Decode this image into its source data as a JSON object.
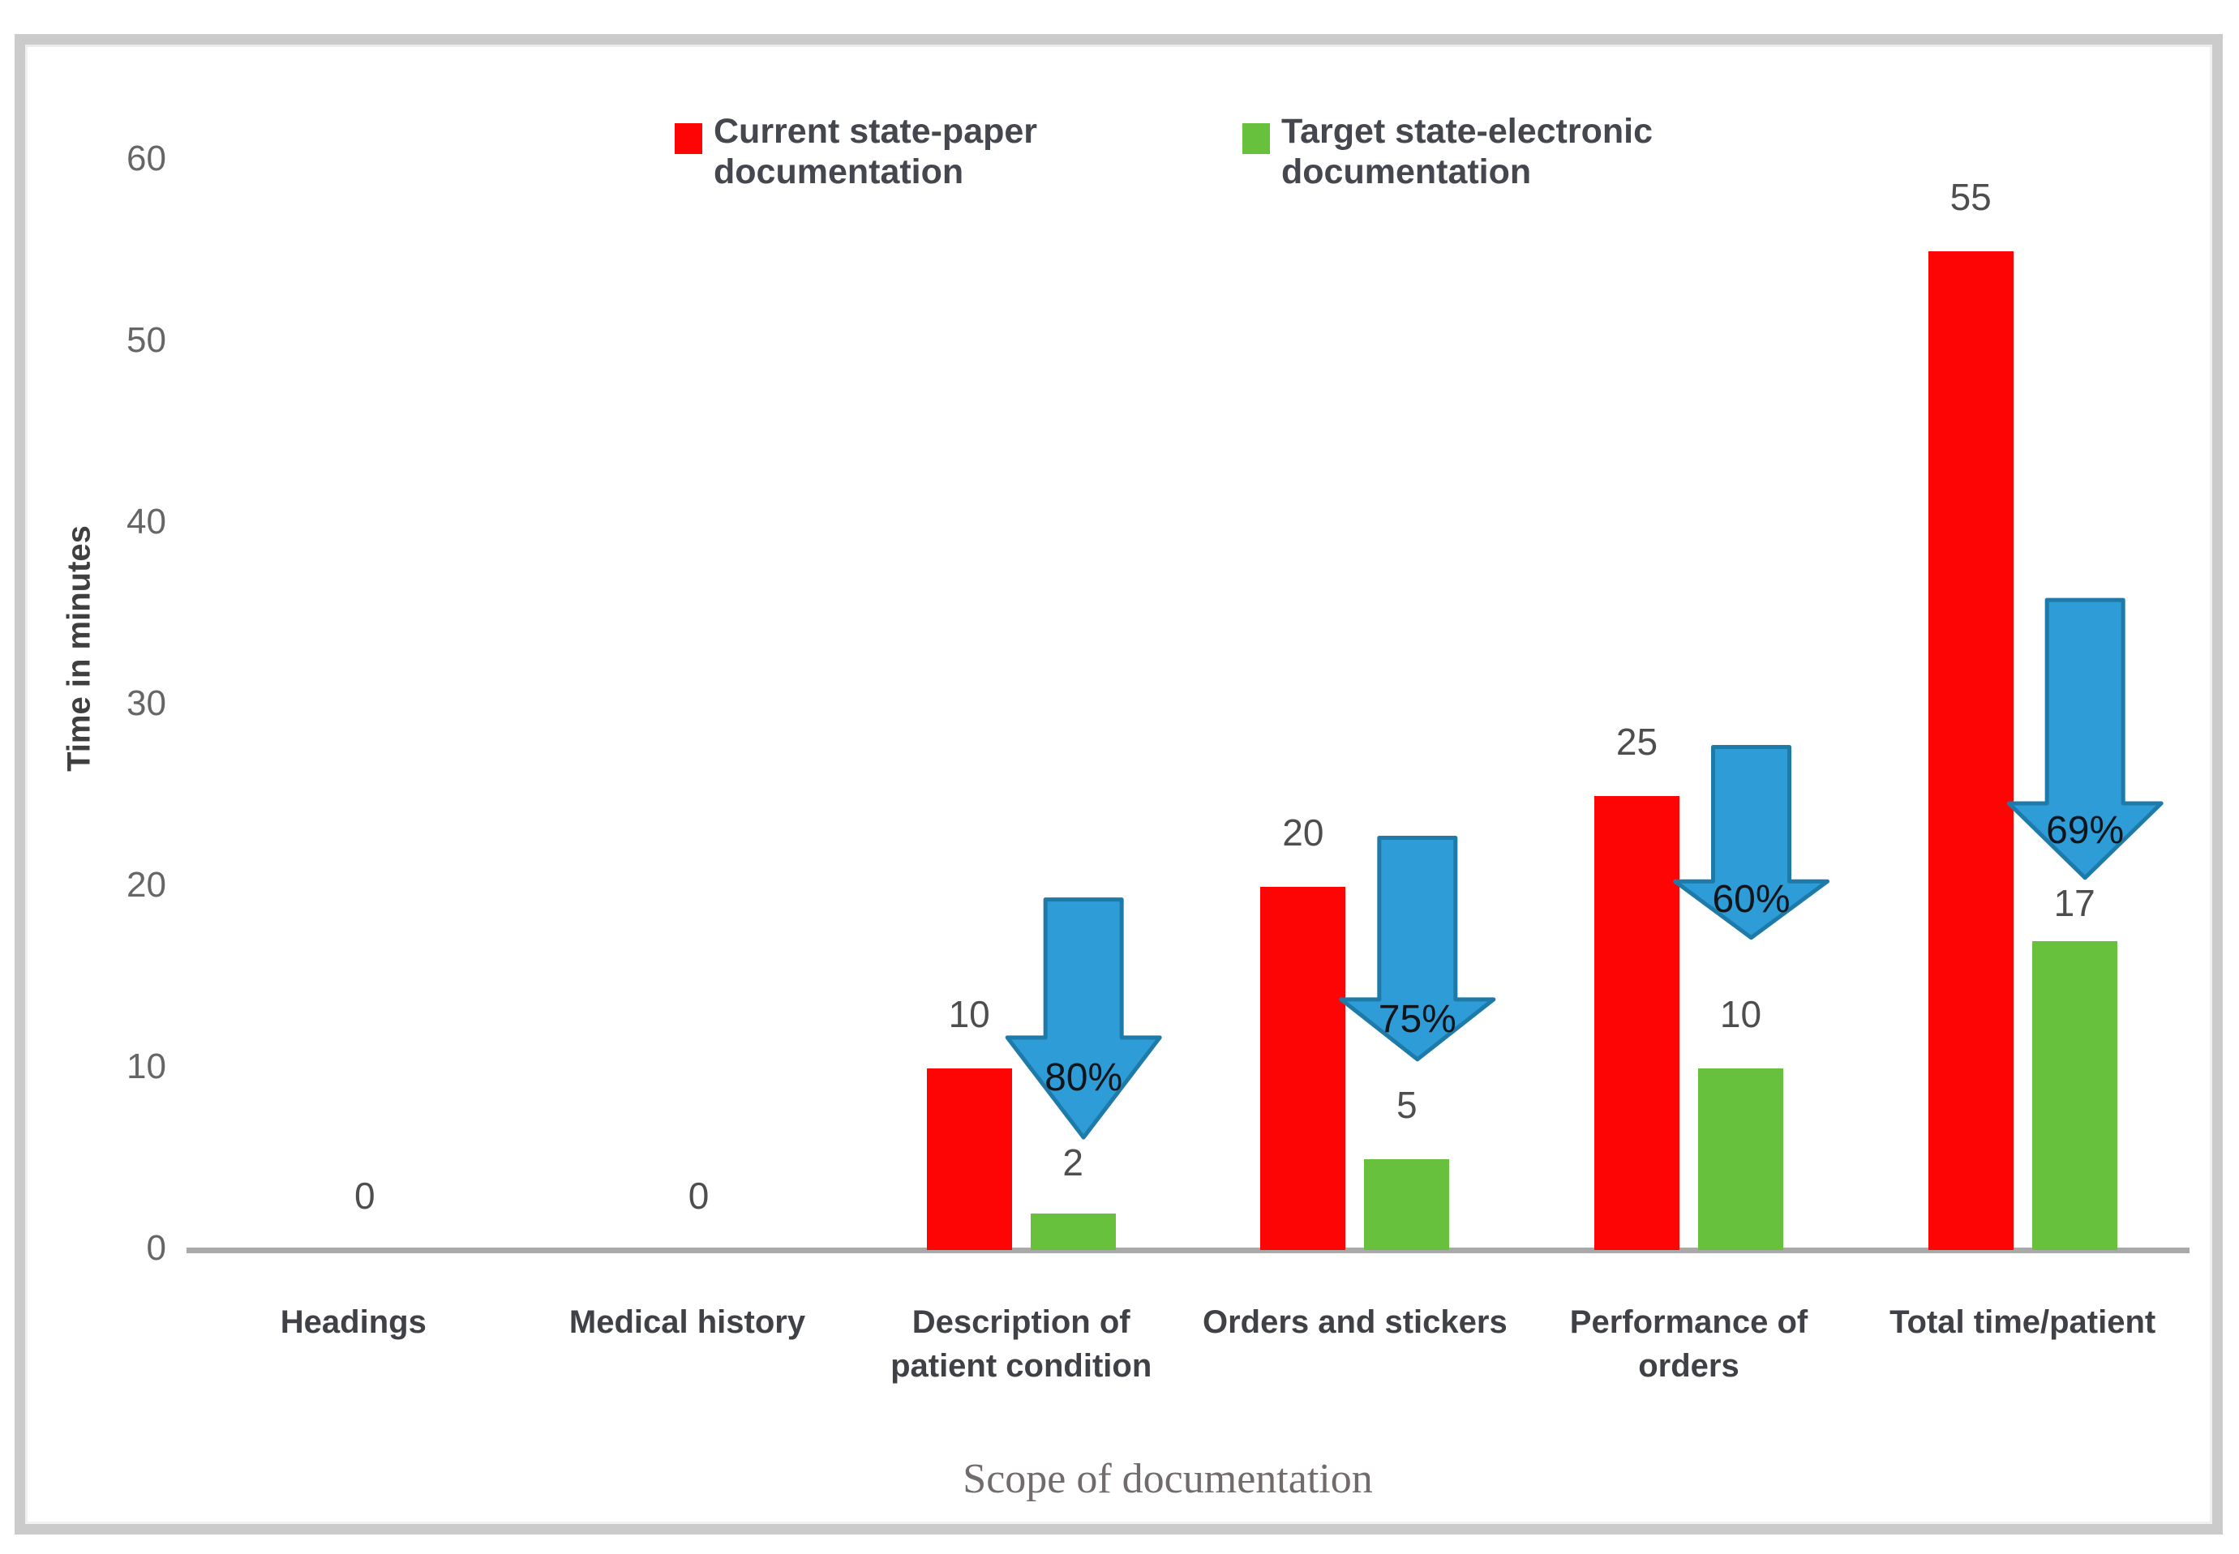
{
  "figure": {
    "frame_border_color": "#CBCBCB",
    "background_color": "#FFFFFF"
  },
  "chart_data": {
    "type": "bar",
    "title": "",
    "xlabel": "Scope of documentation",
    "ylabel": "Time in minutes",
    "categories": [
      "Headings",
      "Medical history",
      "Description of\npatient condition",
      "Orders and stickers",
      "Performance of\norders",
      "Total time/patient"
    ],
    "yticks": [
      0,
      10,
      20,
      30,
      40,
      50,
      60
    ],
    "ylim": [
      0,
      62
    ],
    "grid": false,
    "legend_position": "top",
    "axis_line_color": "#A9A9A9",
    "zero_label": "0",
    "series": [
      {
        "name": "Current state-paper documentation",
        "color": "#FE0505",
        "values": [
          0,
          0,
          10,
          20,
          25,
          55
        ]
      },
      {
        "name": "Target state-electronic documentation",
        "color": "#68C13C",
        "values": [
          0,
          0,
          2,
          5,
          10,
          17
        ]
      }
    ],
    "reduction_arrows": {
      "fill": "#2E9CD6",
      "stroke": "#1E7AA8",
      "items": [
        {
          "category_index": 2,
          "label": "80%",
          "shaft_top_minutes": 19.3,
          "head_base_minutes": 11.7,
          "tip_minutes": 6.2
        },
        {
          "category_index": 3,
          "label": "75%",
          "shaft_top_minutes": 22.7,
          "head_base_minutes": 13.8,
          "tip_minutes": 10.5
        },
        {
          "category_index": 4,
          "label": "60%",
          "shaft_top_minutes": 27.7,
          "head_base_minutes": 20.3,
          "tip_minutes": 17.2
        },
        {
          "category_index": 5,
          "label": "69%",
          "shaft_top_minutes": 35.8,
          "head_base_minutes": 24.6,
          "tip_minutes": 20.5
        }
      ]
    }
  }
}
